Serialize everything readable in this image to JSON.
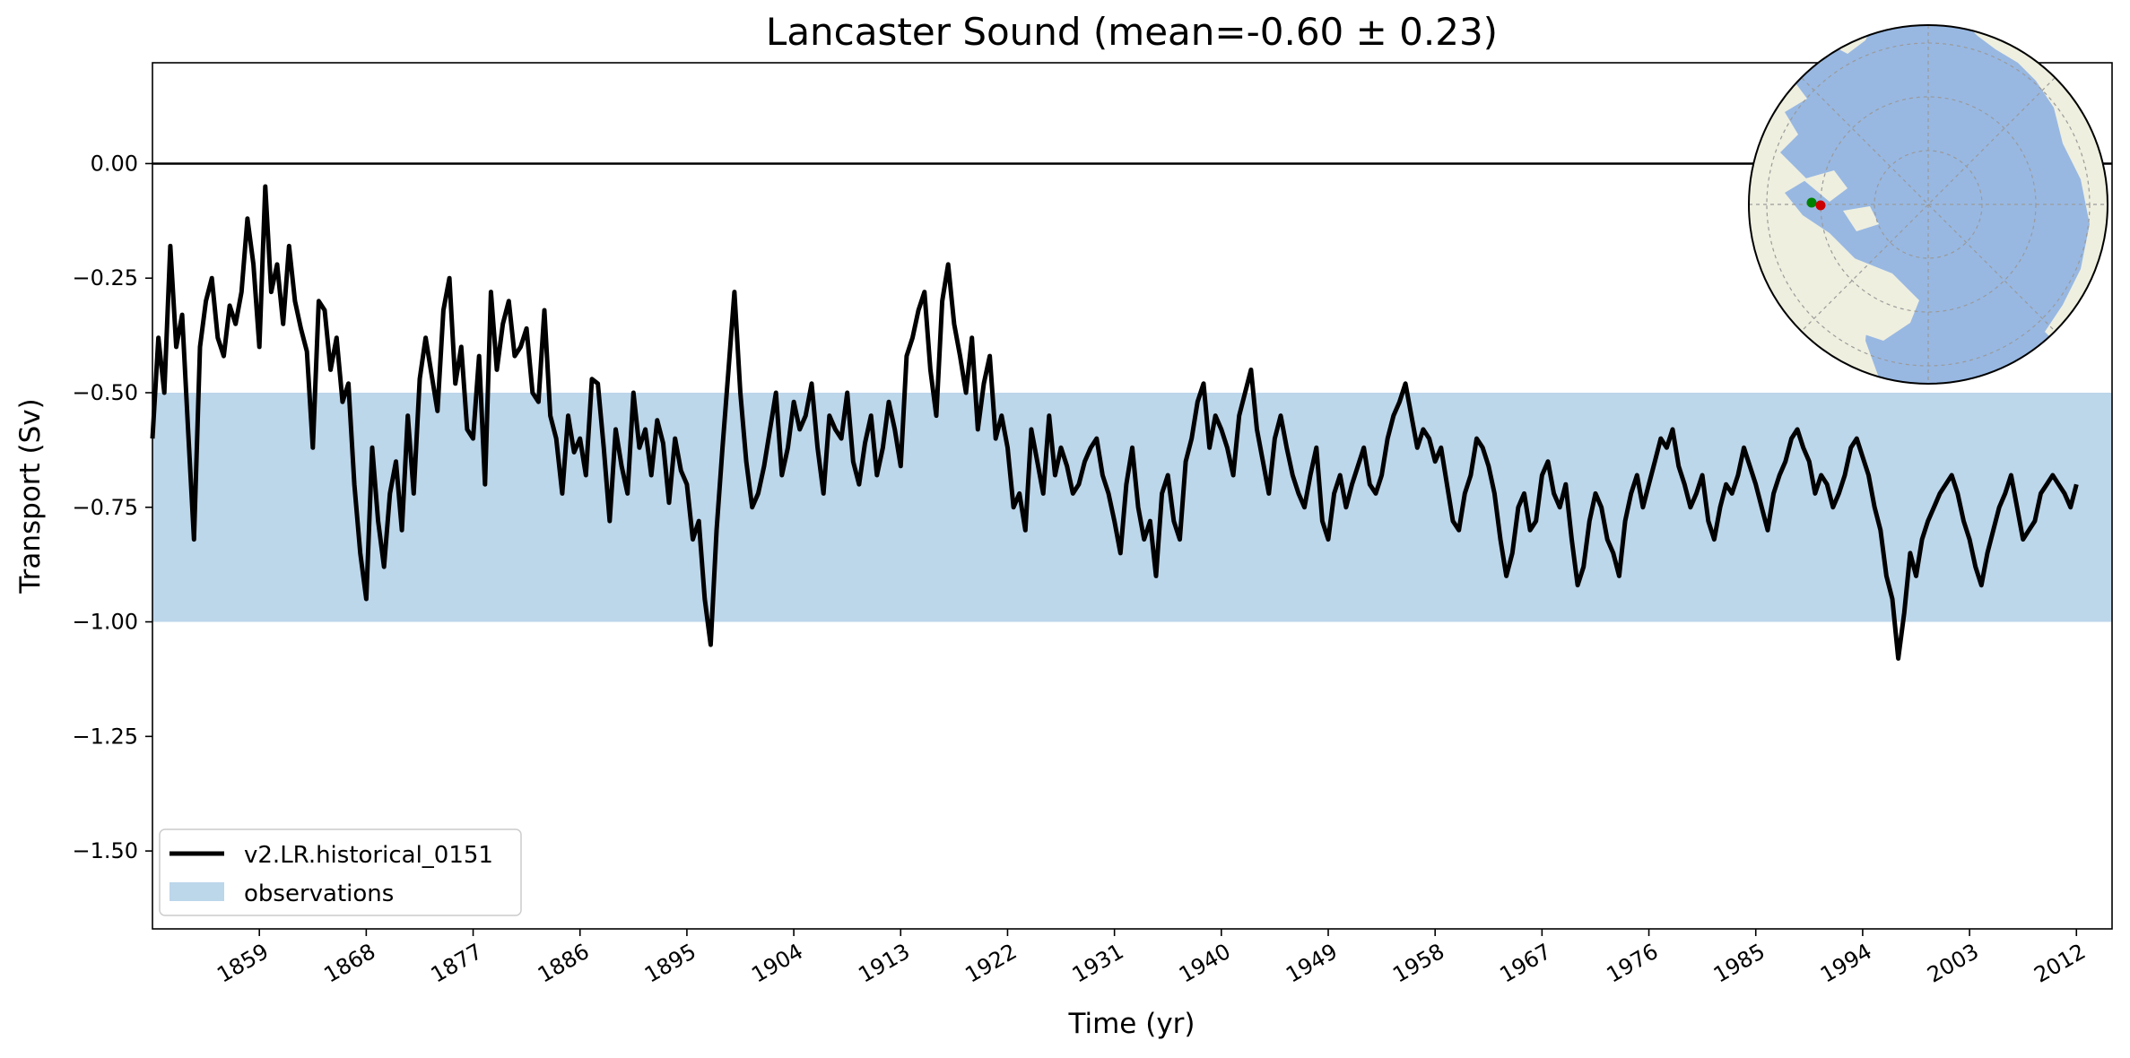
{
  "chart_data": {
    "type": "line",
    "title": "Lancaster Sound (mean=-0.60 ± 0.23)",
    "xlabel": "Time (yr)",
    "ylabel": "Transport (Sv)",
    "xlim": [
      1850,
      2015
    ],
    "ylim": [
      -1.67,
      0.22
    ],
    "x_ticks": [
      1859,
      1868,
      1877,
      1886,
      1895,
      1904,
      1913,
      1922,
      1931,
      1940,
      1949,
      1958,
      1967,
      1976,
      1985,
      1994,
      2003,
      2012
    ],
    "y_ticks": [
      0.0,
      -0.25,
      -0.5,
      -0.75,
      -1.0,
      -1.25,
      -1.5
    ],
    "y_tick_labels": [
      "0.00",
      "−0.25",
      "−0.50",
      "−0.75",
      "−1.00",
      "−1.25",
      "−1.50"
    ],
    "zero_line": 0.0,
    "observations_band": [
      -1.0,
      -0.5
    ],
    "grid": false,
    "legend_position": "lower-left",
    "series": [
      {
        "name": "v2.LR.historical_0151",
        "color": "#000000",
        "x_start": 1850,
        "x_step": 0.5,
        "values": [
          -0.6,
          -0.38,
          -0.5,
          -0.18,
          -0.4,
          -0.33,
          -0.58,
          -0.82,
          -0.4,
          -0.3,
          -0.25,
          -0.38,
          -0.42,
          -0.31,
          -0.35,
          -0.28,
          -0.12,
          -0.22,
          -0.4,
          -0.05,
          -0.28,
          -0.22,
          -0.35,
          -0.18,
          -0.3,
          -0.36,
          -0.41,
          -0.62,
          -0.3,
          -0.32,
          -0.45,
          -0.38,
          -0.52,
          -0.48,
          -0.7,
          -0.85,
          -0.95,
          -0.62,
          -0.78,
          -0.88,
          -0.72,
          -0.65,
          -0.8,
          -0.55,
          -0.72,
          -0.47,
          -0.38,
          -0.46,
          -0.54,
          -0.32,
          -0.25,
          -0.48,
          -0.4,
          -0.58,
          -0.6,
          -0.42,
          -0.7,
          -0.28,
          -0.45,
          -0.35,
          -0.3,
          -0.42,
          -0.4,
          -0.36,
          -0.5,
          -0.52,
          -0.32,
          -0.55,
          -0.6,
          -0.72,
          -0.55,
          -0.63,
          -0.6,
          -0.68,
          -0.47,
          -0.48,
          -0.62,
          -0.78,
          -0.58,
          -0.66,
          -0.72,
          -0.5,
          -0.62,
          -0.58,
          -0.68,
          -0.56,
          -0.61,
          -0.74,
          -0.6,
          -0.67,
          -0.7,
          -0.82,
          -0.78,
          -0.95,
          -1.05,
          -0.8,
          -0.62,
          -0.45,
          -0.28,
          -0.5,
          -0.65,
          -0.75,
          -0.72,
          -0.66,
          -0.58,
          -0.5,
          -0.68,
          -0.62,
          -0.52,
          -0.58,
          -0.55,
          -0.48,
          -0.62,
          -0.72,
          -0.55,
          -0.58,
          -0.6,
          -0.5,
          -0.65,
          -0.7,
          -0.61,
          -0.55,
          -0.68,
          -0.62,
          -0.52,
          -0.58,
          -0.66,
          -0.42,
          -0.38,
          -0.32,
          -0.28,
          -0.45,
          -0.55,
          -0.3,
          -0.22,
          -0.35,
          -0.42,
          -0.5,
          -0.38,
          -0.58,
          -0.48,
          -0.42,
          -0.6,
          -0.55,
          -0.62,
          -0.75,
          -0.72,
          -0.8,
          -0.58,
          -0.65,
          -0.72,
          -0.55,
          -0.68,
          -0.62,
          -0.66,
          -0.72,
          -0.7,
          -0.65,
          -0.62,
          -0.6,
          -0.68,
          -0.72,
          -0.78,
          -0.85,
          -0.7,
          -0.62,
          -0.75,
          -0.82,
          -0.78,
          -0.9,
          -0.72,
          -0.68,
          -0.78,
          -0.82,
          -0.65,
          -0.6,
          -0.52,
          -0.48,
          -0.62,
          -0.55,
          -0.58,
          -0.62,
          -0.68,
          -0.55,
          -0.5,
          -0.45,
          -0.58,
          -0.65,
          -0.72,
          -0.6,
          -0.55,
          -0.62,
          -0.68,
          -0.72,
          -0.75,
          -0.68,
          -0.62,
          -0.78,
          -0.82,
          -0.72,
          -0.68,
          -0.75,
          -0.7,
          -0.66,
          -0.62,
          -0.7,
          -0.72,
          -0.68,
          -0.6,
          -0.55,
          -0.52,
          -0.48,
          -0.55,
          -0.62,
          -0.58,
          -0.6,
          -0.65,
          -0.62,
          -0.7,
          -0.78,
          -0.8,
          -0.72,
          -0.68,
          -0.6,
          -0.62,
          -0.66,
          -0.72,
          -0.82,
          -0.9,
          -0.85,
          -0.75,
          -0.72,
          -0.8,
          -0.78,
          -0.68,
          -0.65,
          -0.72,
          -0.75,
          -0.7,
          -0.82,
          -0.92,
          -0.88,
          -0.78,
          -0.72,
          -0.75,
          -0.82,
          -0.85,
          -0.9,
          -0.78,
          -0.72,
          -0.68,
          -0.75,
          -0.7,
          -0.65,
          -0.6,
          -0.62,
          -0.58,
          -0.66,
          -0.7,
          -0.75,
          -0.72,
          -0.68,
          -0.78,
          -0.82,
          -0.75,
          -0.7,
          -0.72,
          -0.68,
          -0.62,
          -0.66,
          -0.7,
          -0.75,
          -0.8,
          -0.72,
          -0.68,
          -0.65,
          -0.6,
          -0.58,
          -0.62,
          -0.65,
          -0.72,
          -0.68,
          -0.7,
          -0.75,
          -0.72,
          -0.68,
          -0.62,
          -0.6,
          -0.64,
          -0.68,
          -0.75,
          -0.8,
          -0.9,
          -0.95,
          -1.08,
          -0.98,
          -0.85,
          -0.9,
          -0.82,
          -0.78,
          -0.75,
          -0.72,
          -0.7,
          -0.68,
          -0.72,
          -0.78,
          -0.82,
          -0.88,
          -0.92,
          -0.85,
          -0.8,
          -0.75,
          -0.72,
          -0.68,
          -0.75,
          -0.82,
          -0.8,
          -0.78,
          -0.72,
          -0.7,
          -0.68,
          -0.7,
          -0.72,
          -0.75,
          -0.7
        ]
      }
    ],
    "legend": [
      {
        "label": "v2.LR.historical_0151",
        "kind": "line",
        "color": "#000000"
      },
      {
        "label": "observations",
        "kind": "patch",
        "color": "#bcd6ea"
      }
    ],
    "inset_map": {
      "description": "north-polar-projection",
      "land_color": "#efefdf",
      "ocean_color": "#98b8e2",
      "marker_colors": [
        "#008000",
        "#cc0000"
      ]
    }
  }
}
